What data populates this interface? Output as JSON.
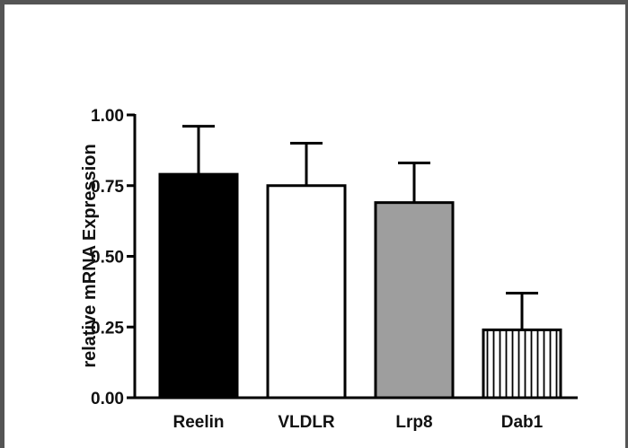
{
  "chart_data": {
    "type": "bar",
    "title": "",
    "xlabel": "",
    "ylabel": "relative mRNA Expression",
    "categories": [
      "Reelin",
      "VLDLR",
      "Lrp8",
      "Dab1"
    ],
    "values": [
      0.79,
      0.75,
      0.69,
      0.24
    ],
    "error_upper": [
      0.96,
      0.9,
      0.83,
      0.37
    ],
    "ylim": [
      0,
      1
    ],
    "yticks": [
      0,
      0.25,
      0.5,
      0.75,
      1
    ],
    "ytick_labels": [
      "0.00",
      "0.25",
      "0.50",
      "0.75",
      "1.00"
    ],
    "bar_fills": [
      "solid-black",
      "white",
      "gray",
      "vertical-stripes"
    ],
    "colors": {
      "black": "#000000",
      "gray": "#9e9e9e",
      "white": "#ffffff"
    },
    "grid": false,
    "legend": "none"
  }
}
